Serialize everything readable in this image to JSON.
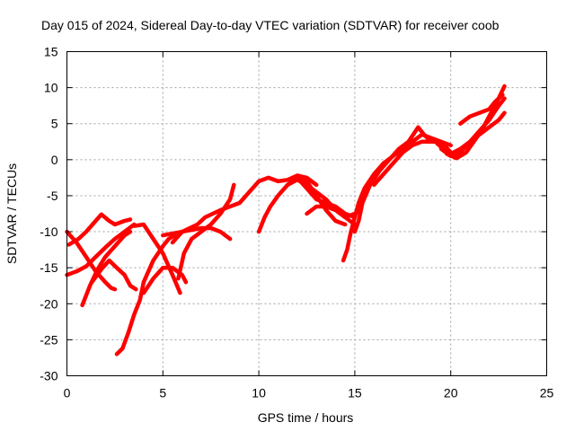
{
  "chart_data": {
    "type": "line",
    "title": "Day 015 of 2024, Sidereal Day-to-day VTEC variation (SDTVAR) for receiver coob",
    "xlabel": "GPS time / hours",
    "ylabel": "SDTVAR / TECUs",
    "xlim": [
      0,
      25
    ],
    "ylim": [
      -30,
      15
    ],
    "xticks": [
      0,
      5,
      10,
      15,
      20,
      25
    ],
    "yticks": [
      -30,
      -25,
      -20,
      -15,
      -10,
      -5,
      0,
      5,
      10,
      15
    ],
    "grid": true,
    "color": "#ff0000",
    "series": [
      {
        "name": "arc1",
        "points": [
          [
            0,
            -10
          ],
          [
            0.5,
            -11.5
          ],
          [
            1,
            -13.5
          ],
          [
            1.5,
            -15.5
          ],
          [
            2,
            -17
          ],
          [
            2.3,
            -17.8
          ],
          [
            2.5,
            -18
          ]
        ]
      },
      {
        "name": "arc2",
        "points": [
          [
            0,
            -16
          ],
          [
            0.5,
            -15.5
          ],
          [
            1,
            -14.8
          ],
          [
            1.5,
            -13.5
          ],
          [
            2,
            -12.2
          ],
          [
            2.5,
            -11
          ],
          [
            3,
            -10
          ],
          [
            3.5,
            -9
          ]
        ]
      },
      {
        "name": "arc3",
        "points": [
          [
            0.1,
            -11.8
          ],
          [
            0.6,
            -11
          ],
          [
            1,
            -10
          ],
          [
            1.5,
            -8.5
          ],
          [
            1.8,
            -7.6
          ],
          [
            2.2,
            -8.5
          ],
          [
            2.5,
            -9
          ],
          [
            3,
            -8.5
          ],
          [
            3.3,
            -8.3
          ]
        ]
      },
      {
        "name": "arc4",
        "points": [
          [
            0.8,
            -20.2
          ],
          [
            1.2,
            -17.5
          ],
          [
            1.6,
            -15.2
          ],
          [
            2,
            -13.5
          ],
          [
            2.5,
            -12
          ],
          [
            3,
            -10.5
          ],
          [
            3.3,
            -10
          ]
        ]
      },
      {
        "name": "arc5",
        "points": [
          [
            1.3,
            -17
          ],
          [
            1.8,
            -15.2
          ],
          [
            2.2,
            -14
          ],
          [
            2.6,
            -15
          ],
          [
            3,
            -16
          ],
          [
            3.3,
            -17.5
          ],
          [
            3.6,
            -18
          ]
        ]
      },
      {
        "name": "arc6",
        "points": [
          [
            2.6,
            -27
          ],
          [
            2.9,
            -26.2
          ],
          [
            3.2,
            -24
          ],
          [
            3.5,
            -21.5
          ],
          [
            3.8,
            -19.5
          ],
          [
            4,
            -17
          ],
          [
            4.5,
            -14
          ],
          [
            5,
            -12
          ],
          [
            5.3,
            -11
          ],
          [
            5.6,
            -10.5
          ]
        ]
      },
      {
        "name": "arc7",
        "points": [
          [
            3.5,
            -9.2
          ],
          [
            4,
            -9
          ],
          [
            4.5,
            -11
          ],
          [
            5,
            -13
          ],
          [
            5.5,
            -16
          ],
          [
            5.9,
            -18.5
          ]
        ]
      },
      {
        "name": "arc8",
        "points": [
          [
            4,
            -18.5
          ],
          [
            4.5,
            -16.5
          ],
          [
            5,
            -15
          ],
          [
            5.5,
            -15
          ],
          [
            6,
            -16
          ],
          [
            6.2,
            -17
          ]
        ]
      },
      {
        "name": "arc9",
        "points": [
          [
            5,
            -10.5
          ],
          [
            6,
            -10
          ],
          [
            7,
            -9.5
          ],
          [
            7.5,
            -9.5
          ],
          [
            8,
            -10
          ],
          [
            8.5,
            -11
          ]
        ]
      },
      {
        "name": "arc10",
        "points": [
          [
            5.8,
            -16.5
          ],
          [
            6.1,
            -13
          ],
          [
            6.5,
            -11
          ],
          [
            7,
            -10
          ],
          [
            7.5,
            -9
          ],
          [
            8,
            -7.5
          ],
          [
            8.5,
            -5.5
          ],
          [
            8.7,
            -3.5
          ]
        ]
      },
      {
        "name": "arc11",
        "points": [
          [
            5.5,
            -11.5
          ],
          [
            6,
            -10
          ],
          [
            6.8,
            -9
          ],
          [
            7.2,
            -8
          ],
          [
            8,
            -7
          ],
          [
            9,
            -6
          ],
          [
            9.5,
            -4.5
          ],
          [
            10,
            -3
          ],
          [
            10.5,
            -2.5
          ],
          [
            11,
            -3
          ],
          [
            11.5,
            -2.8
          ],
          [
            12,
            -2.2
          ],
          [
            12.5,
            -2.5
          ],
          [
            13,
            -3.5
          ]
        ]
      },
      {
        "name": "arc12",
        "points": [
          [
            10,
            -10
          ],
          [
            10.3,
            -8
          ],
          [
            10.6,
            -6.5
          ],
          [
            11,
            -5
          ],
          [
            11.5,
            -3.5
          ],
          [
            12,
            -2.5
          ],
          [
            12.5,
            -3
          ],
          [
            13,
            -5
          ],
          [
            13.5,
            -7
          ],
          [
            14,
            -8.5
          ],
          [
            14.5,
            -9
          ]
        ]
      },
      {
        "name": "arc13",
        "points": [
          [
            11.5,
            -3.5
          ],
          [
            12,
            -2.8
          ],
          [
            12.5,
            -3.5
          ],
          [
            13,
            -4.5
          ],
          [
            13.5,
            -5.5
          ],
          [
            14,
            -7
          ],
          [
            14.5,
            -8
          ],
          [
            15,
            -7.5
          ],
          [
            15.3,
            -7
          ]
        ]
      },
      {
        "name": "arc14",
        "points": [
          [
            12,
            -2.5
          ],
          [
            12.5,
            -4
          ],
          [
            13,
            -5.5
          ],
          [
            13.5,
            -6
          ],
          [
            14,
            -6.5
          ],
          [
            14.5,
            -7.5
          ],
          [
            15,
            -8
          ]
        ]
      },
      {
        "name": "arc15",
        "points": [
          [
            12.5,
            -7.5
          ],
          [
            13,
            -6.5
          ],
          [
            13.5,
            -6.5
          ],
          [
            14,
            -7
          ],
          [
            14.5,
            -8
          ],
          [
            15,
            -9
          ]
        ]
      },
      {
        "name": "arc16",
        "points": [
          [
            14.4,
            -14
          ],
          [
            14.6,
            -12.5
          ],
          [
            14.8,
            -10
          ],
          [
            15,
            -8
          ],
          [
            15.2,
            -6
          ],
          [
            15.5,
            -4
          ],
          [
            16,
            -2
          ],
          [
            16.5,
            -0.5
          ],
          [
            17,
            0.5
          ],
          [
            17.5,
            1.5
          ],
          [
            18,
            2.5
          ],
          [
            18.5,
            3.5
          ],
          [
            19,
            3
          ],
          [
            19.5,
            2.5
          ],
          [
            20,
            2
          ]
        ]
      },
      {
        "name": "arc17",
        "points": [
          [
            15,
            -10
          ],
          [
            15.2,
            -8.5
          ],
          [
            15.4,
            -6
          ],
          [
            15.8,
            -3.5
          ],
          [
            16.3,
            -1.5
          ],
          [
            16.8,
            0
          ],
          [
            17.3,
            1.5
          ],
          [
            17.8,
            2.5
          ],
          [
            18.3,
            4.5
          ],
          [
            18.6,
            3.5
          ],
          [
            19,
            2.5
          ],
          [
            19.5,
            2.5
          ],
          [
            20,
            1
          ]
        ]
      },
      {
        "name": "arc18",
        "points": [
          [
            16,
            -3.5
          ],
          [
            16.5,
            -2
          ],
          [
            17,
            -0.5
          ],
          [
            17.5,
            1
          ],
          [
            18,
            2
          ],
          [
            18.5,
            2.5
          ],
          [
            19.2,
            2.5
          ],
          [
            19.6,
            1.5
          ],
          [
            20,
            0.8
          ],
          [
            20.5,
            1.5
          ],
          [
            21,
            2.5
          ],
          [
            21.5,
            3.5
          ],
          [
            22,
            4.5
          ],
          [
            22.5,
            5.5
          ],
          [
            22.8,
            6.5
          ]
        ]
      },
      {
        "name": "arc19",
        "points": [
          [
            19.5,
            1.5
          ],
          [
            20,
            0.5
          ],
          [
            20.5,
            1
          ],
          [
            21,
            2.5
          ],
          [
            21.5,
            4
          ],
          [
            22,
            5.5
          ],
          [
            22.5,
            7.5
          ],
          [
            22.8,
            8.5
          ]
        ]
      },
      {
        "name": "arc20",
        "points": [
          [
            19.8,
            0.8
          ],
          [
            20.3,
            0.2
          ],
          [
            20.8,
            1
          ],
          [
            21.2,
            2.5
          ],
          [
            21.6,
            4
          ],
          [
            22,
            6
          ],
          [
            22.4,
            8
          ],
          [
            22.8,
            10.2
          ]
        ]
      },
      {
        "name": "arc21",
        "points": [
          [
            20.5,
            5
          ],
          [
            21,
            6
          ],
          [
            21.5,
            6.5
          ],
          [
            22,
            7
          ],
          [
            22.3,
            8
          ],
          [
            22.7,
            9
          ]
        ]
      }
    ]
  }
}
